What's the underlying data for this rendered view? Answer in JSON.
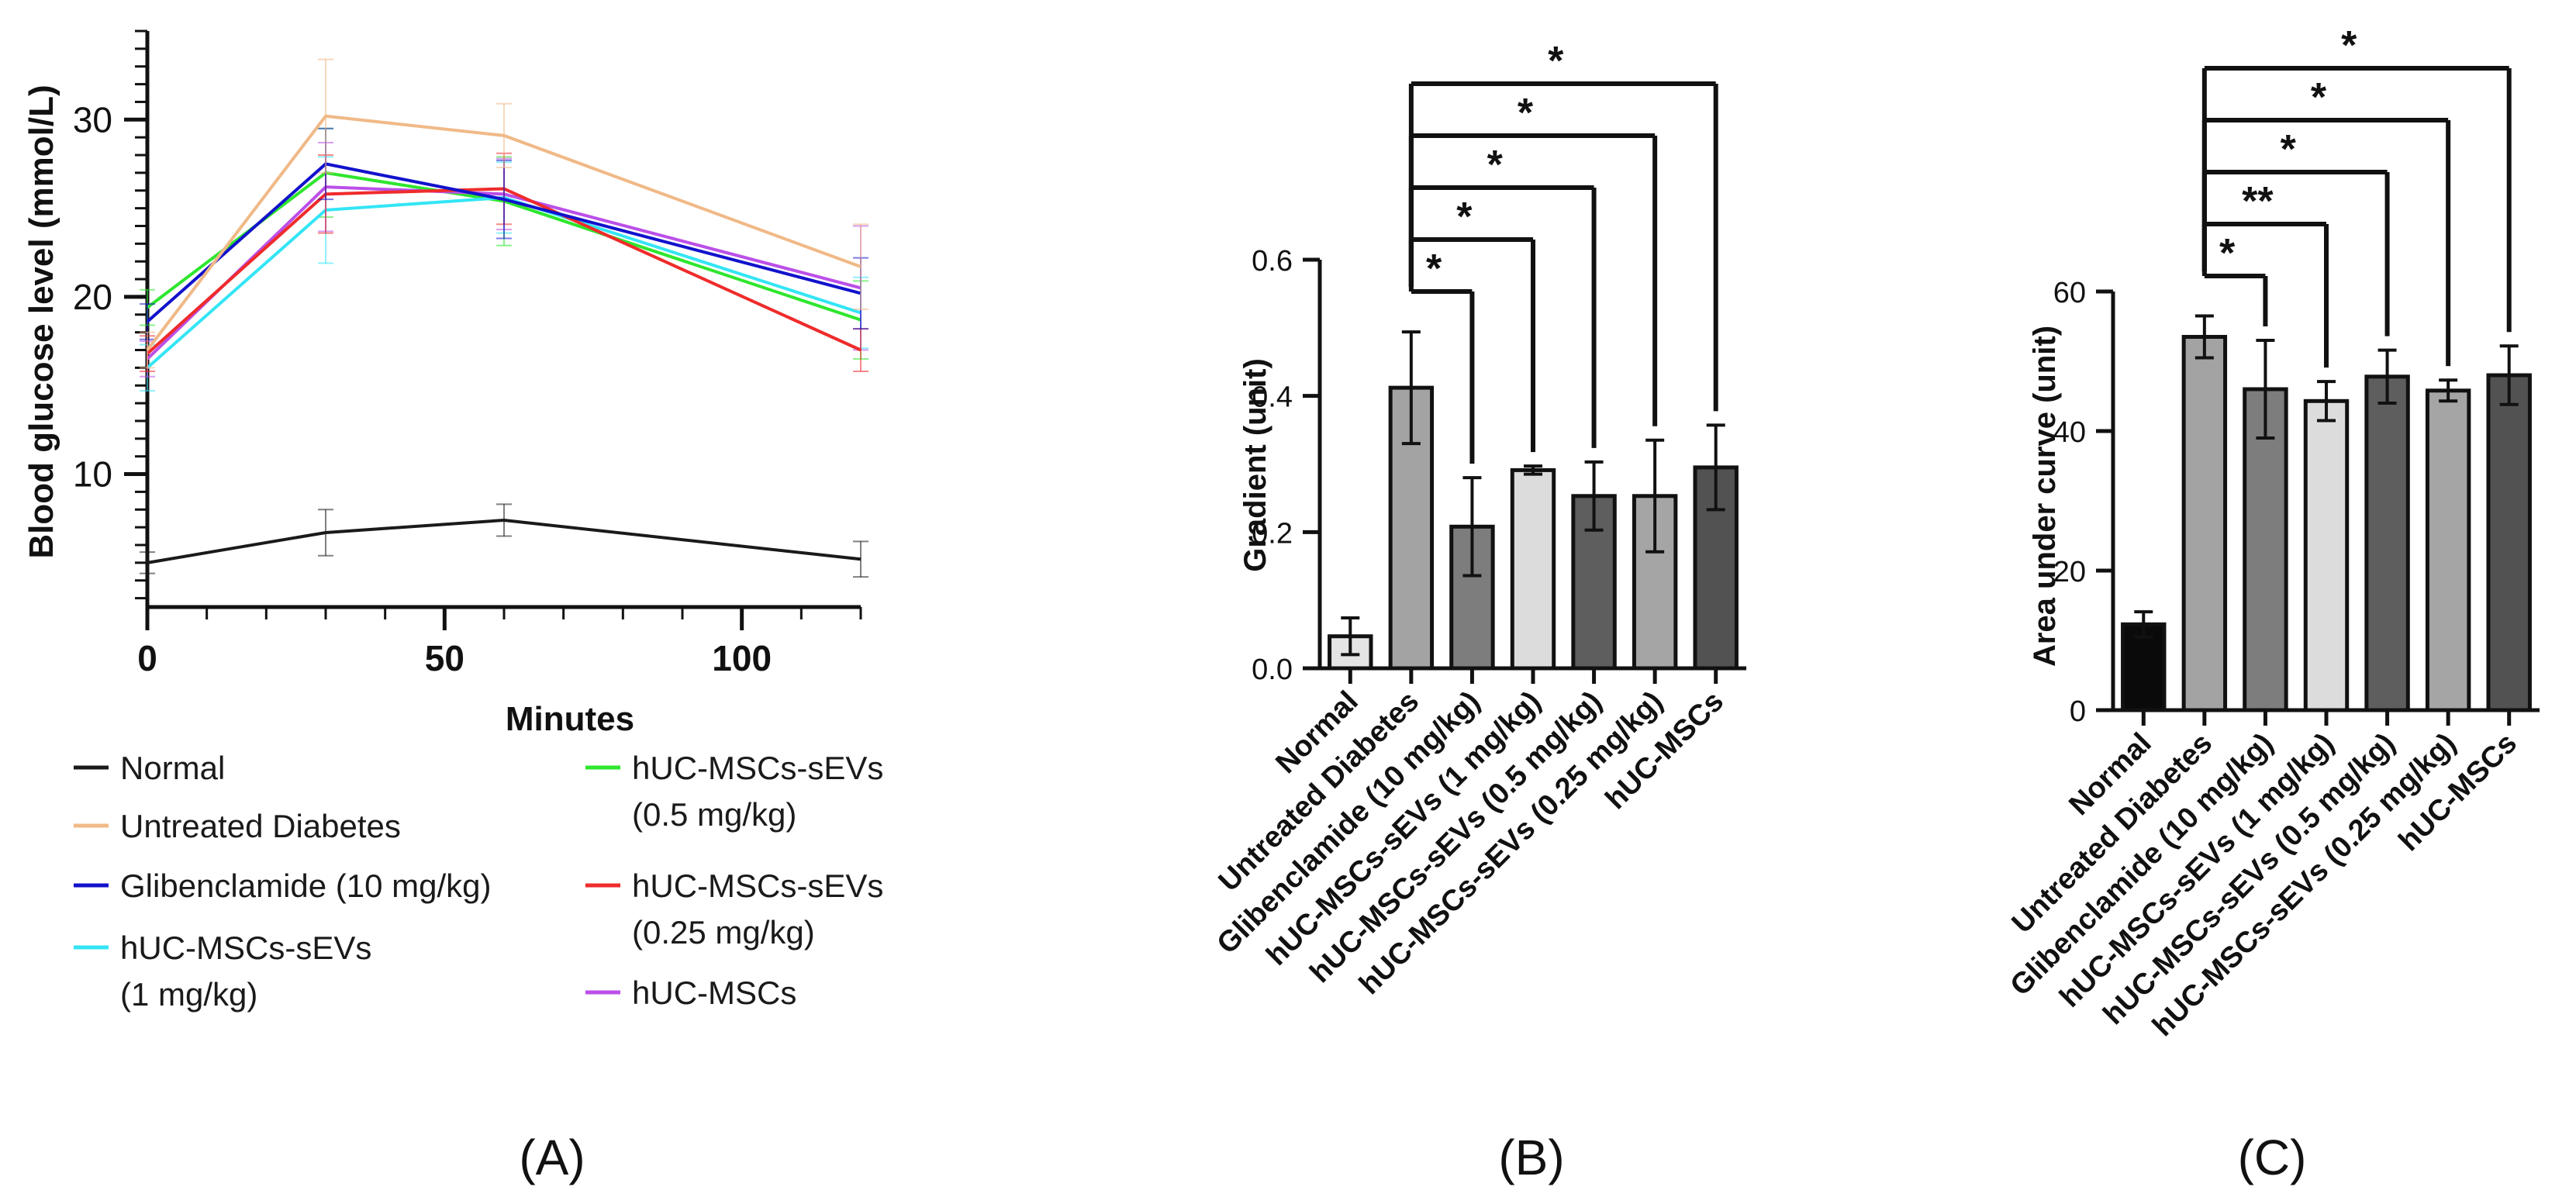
{
  "chart_data": [
    {
      "panel": "A",
      "type": "line",
      "xlabel": "Minutes",
      "ylabel": "Blood glucose level (mmol/L)",
      "xlim": [
        0,
        120
      ],
      "ylim": [
        2.5,
        35
      ],
      "xticks": [
        "0",
        "50",
        "100"
      ],
      "yticks": [
        "10",
        "20",
        "30"
      ],
      "grid": false,
      "x": [
        0,
        30,
        60,
        120
      ],
      "series": [
        {
          "name": "Normal",
          "color": "#1a1a1a",
          "values": [
            5.0,
            6.7,
            7.4,
            5.2
          ],
          "errors": [
            0.6,
            1.3,
            0.9,
            1.0
          ]
        },
        {
          "name": "Untreated Diabetes",
          "color": "#f0b987",
          "values": [
            17.0,
            30.2,
            29.1,
            21.7
          ],
          "errors": [
            1.0,
            3.2,
            1.8,
            2.4
          ]
        },
        {
          "name": "Glibenclamide (10 mg/kg)",
          "color": "#1212cc",
          "values": [
            18.6,
            27.5,
            25.5,
            20.2
          ],
          "errors": [
            1.0,
            2.0,
            2.2,
            2.0
          ]
        },
        {
          "name": "hUC-MSCs-sEVs (1 mg/kg)",
          "color": "#33e5f5",
          "values": [
            16.0,
            24.9,
            25.6,
            19.1
          ],
          "errors": [
            1.3,
            3.0,
            2.0,
            2.0
          ]
        },
        {
          "name": "hUC-MSCs-sEVs (0.5 mg/kg)",
          "color": "#2ee62e",
          "values": [
            19.4,
            27.0,
            25.4,
            18.7
          ],
          "errors": [
            1.0,
            2.5,
            2.5,
            2.2
          ]
        },
        {
          "name": "hUC-MSCs-sEVs (0.25 mg/kg)",
          "color": "#ef2b2b",
          "values": [
            16.8,
            25.8,
            26.1,
            17.0
          ],
          "errors": [
            1.0,
            2.2,
            2.0,
            1.2
          ]
        },
        {
          "name": "hUC-MSCs",
          "color": "#bb4fe8",
          "values": [
            16.5,
            26.2,
            25.8,
            20.5
          ],
          "errors": [
            1.0,
            2.5,
            2.0,
            3.5
          ]
        }
      ],
      "legend_labels": [
        "Normal",
        "Untreated Diabetes",
        "Glibenclamide (10 mg/kg)",
        "hUC-MSCs-sEVs",
        "(1 mg/kg)",
        "hUC-MSCs-sEVs",
        "(0.5 mg/kg)",
        "hUC-MSCs-sEVs",
        "(0.25 mg/kg)",
        "hUC-MSCs"
      ],
      "caption": "(A)"
    },
    {
      "panel": "B",
      "type": "bar",
      "xlabel": "",
      "ylabel": "Gradient (unit)",
      "ylim": [
        0,
        0.6
      ],
      "yticks": [
        "0.0",
        "0.2",
        "0.4",
        "0.6"
      ],
      "categories": [
        "Normal",
        "Untreated Diabetes",
        "Glibenclamide (10 mg/kg)",
        "hUC-MSCs-sEVs (1 mg/kg)",
        "hUC-MSCs-sEVs (0.5 mg/kg)",
        "hUC-MSCs-sEVs (0.25 mg/kg)",
        "hUC-MSCs"
      ],
      "values": [
        0.047,
        0.412,
        0.208,
        0.291,
        0.253,
        0.253,
        0.295
      ],
      "errors": [
        0.027,
        0.082,
        0.072,
        0.006,
        0.05,
        0.082,
        0.062
      ],
      "bar_colors": [
        "#e4e4e4",
        "#a3a3a3",
        "#7d7d7d",
        "#dcdcdc",
        "#5e5e5e",
        "#a5a5a5",
        "#525252"
      ],
      "significance": [
        {
          "from": 1,
          "to": 2,
          "label": "*"
        },
        {
          "from": 1,
          "to": 3,
          "label": "*"
        },
        {
          "from": 1,
          "to": 4,
          "label": "*"
        },
        {
          "from": 1,
          "to": 5,
          "label": "*"
        },
        {
          "from": 1,
          "to": 6,
          "label": "*"
        }
      ],
      "caption": "(B)"
    },
    {
      "panel": "C",
      "type": "bar",
      "xlabel": "",
      "ylabel": "Area under curve (unit)",
      "ylim": [
        0,
        60
      ],
      "yticks": [
        "0",
        "20",
        "40",
        "60"
      ],
      "categories": [
        "Normal",
        "Untreated Diabetes",
        "Glibenclamide (10 mg/kg)",
        "hUC-MSCs-sEVs (1 mg/kg)",
        "hUC-MSCs-sEVs (0.5 mg/kg)",
        "hUC-MSCs-sEVs (0.25 mg/kg)",
        "hUC-MSCs"
      ],
      "values": [
        12.3,
        53.5,
        46.0,
        44.3,
        47.8,
        45.8,
        48.0
      ],
      "errors": [
        1.8,
        3.0,
        7.0,
        2.8,
        3.8,
        1.5,
        4.2
      ],
      "bar_colors": [
        "#0a0a0a",
        "#a3a3a3",
        "#7d7d7d",
        "#dcdcdc",
        "#5e5e5e",
        "#a5a5a5",
        "#525252"
      ],
      "significance": [
        {
          "from": 1,
          "to": 2,
          "label": "*"
        },
        {
          "from": 1,
          "to": 3,
          "label": "**"
        },
        {
          "from": 1,
          "to": 4,
          "label": "*"
        },
        {
          "from": 1,
          "to": 5,
          "label": "*"
        },
        {
          "from": 1,
          "to": 6,
          "label": "*"
        }
      ],
      "caption": "(C)"
    }
  ]
}
